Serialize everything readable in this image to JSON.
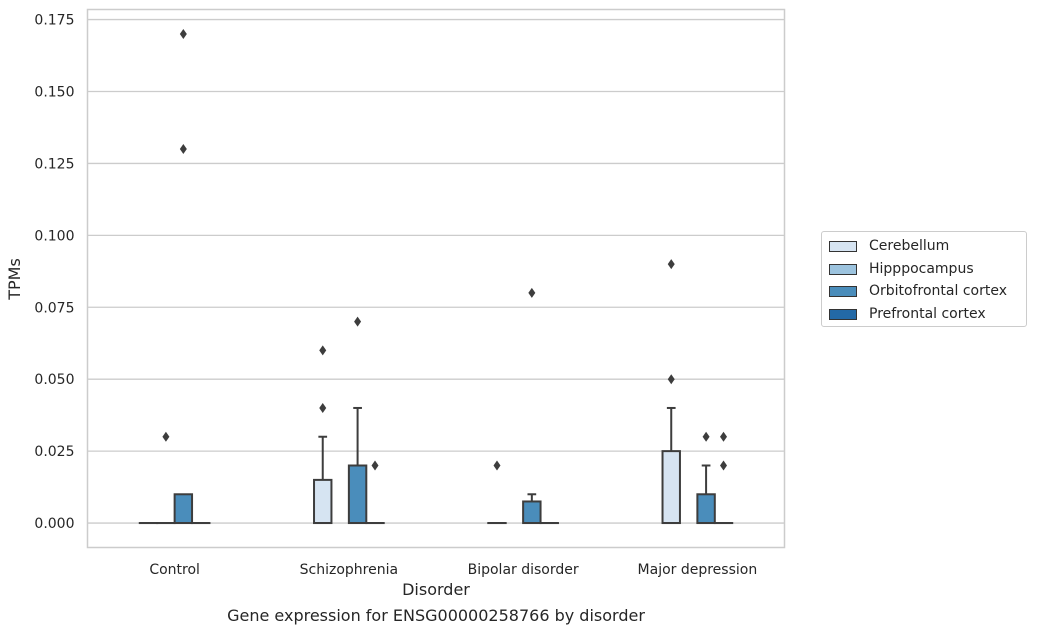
{
  "chart_data": {
    "type": "box",
    "xlabel": "Disorder",
    "ylabel": "TPMs",
    "caption": "Gene expression for ENSG00000258766 by disorder",
    "categories": [
      "Control",
      "Schizophrenia",
      "Bipolar disorder",
      "Major depression"
    ],
    "ylim": [
      -0.0085,
      0.1785
    ],
    "yticks": [
      "0.000",
      "0.025",
      "0.050",
      "0.075",
      "0.100",
      "0.125",
      "0.150",
      "0.175"
    ],
    "grid": true,
    "legend_position": "right",
    "series": [
      {
        "name": "Cerebellum",
        "color": "#d6e4f2",
        "boxes": [
          {
            "q1": 0,
            "median": 0,
            "q3": 0,
            "whisker_low": 0,
            "whisker_high": 0,
            "outliers": []
          },
          {
            "q1": 0,
            "median": 0,
            "q3": 0.015,
            "whisker_low": 0,
            "whisker_high": 0.03,
            "outliers": [
              0.04,
              0.06
            ]
          },
          {
            "q1": 0,
            "median": 0,
            "q3": 0,
            "whisker_low": 0,
            "whisker_high": 0,
            "outliers": [
              0.02
            ]
          },
          {
            "q1": 0,
            "median": 0,
            "q3": 0.025,
            "whisker_low": 0,
            "whisker_high": 0.04,
            "outliers": [
              0.05,
              0.09
            ]
          }
        ]
      },
      {
        "name": "Hipppocampus",
        "color": "#9cc3de",
        "boxes": [
          {
            "q1": 0,
            "median": 0,
            "q3": 0,
            "whisker_low": 0,
            "whisker_high": 0,
            "outliers": [
              0.03
            ]
          },
          null,
          null,
          null
        ]
      },
      {
        "name": "Orbitofrontal cortex",
        "color": "#4a8dbb",
        "boxes": [
          {
            "q1": 0,
            "median": 0,
            "q3": 0.01,
            "whisker_low": 0,
            "whisker_high": 0.01,
            "outliers": [
              0.13,
              0.17
            ]
          },
          {
            "q1": 0,
            "median": 0,
            "q3": 0.02,
            "whisker_low": 0,
            "whisker_high": 0.04,
            "outliers": [
              0.07
            ]
          },
          {
            "q1": 0,
            "median": 0,
            "q3": 0.0075,
            "whisker_low": 0,
            "whisker_high": 0.01,
            "outliers": [
              0.08
            ]
          },
          {
            "q1": 0,
            "median": 0,
            "q3": 0.01,
            "whisker_low": 0,
            "whisker_high": 0.02,
            "outliers": [
              0.03
            ]
          }
        ]
      },
      {
        "name": "Prefrontal cortex",
        "color": "#2369a6",
        "boxes": [
          {
            "q1": 0,
            "median": 0,
            "q3": 0,
            "whisker_low": 0,
            "whisker_high": 0,
            "outliers": []
          },
          {
            "q1": 0,
            "median": 0,
            "q3": 0,
            "whisker_low": 0,
            "whisker_high": 0,
            "outliers": [
              0.02
            ]
          },
          {
            "q1": 0,
            "median": 0,
            "q3": 0,
            "whisker_low": 0,
            "whisker_high": 0,
            "outliers": []
          },
          {
            "q1": 0,
            "median": 0,
            "q3": 0,
            "whisker_low": 0,
            "whisker_high": 0,
            "outliers": [
              0.02,
              0.03
            ]
          }
        ]
      }
    ]
  }
}
